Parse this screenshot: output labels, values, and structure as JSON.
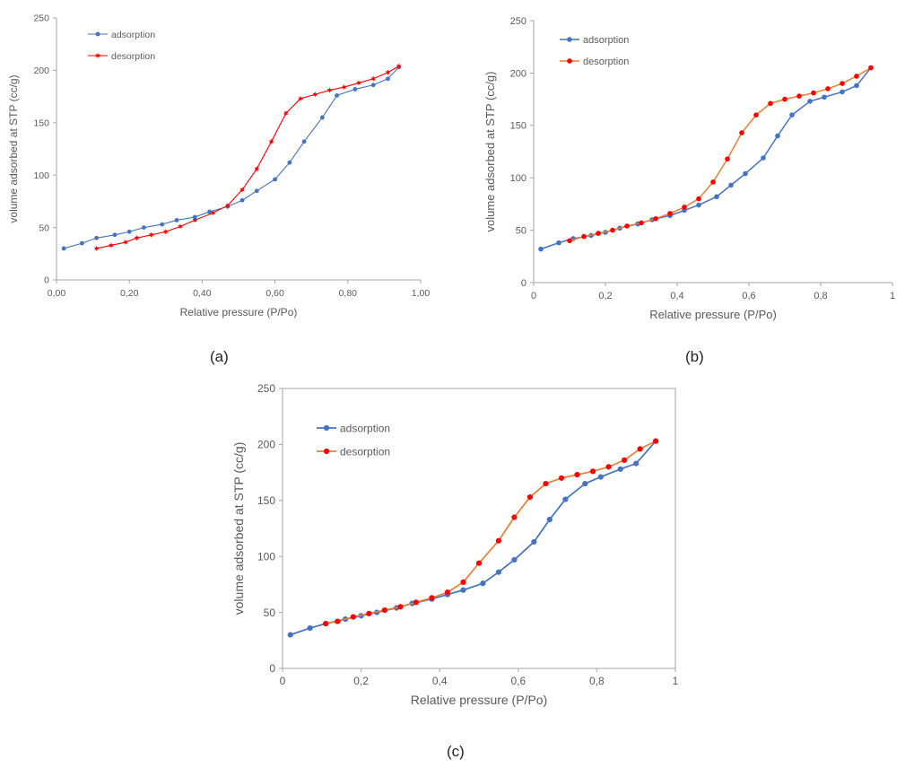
{
  "chart_data": [
    {
      "type": "line",
      "panel_label": "(a)",
      "xlabel": "Relative pressure (P/Po)",
      "ylabel": "volume adsorbed at STP (cc/g)",
      "xlim": [
        0,
        1
      ],
      "ylim": [
        0,
        250
      ],
      "xticks": [
        0,
        0.2,
        0.4,
        0.6,
        0.8,
        1.0
      ],
      "xtick_labels": [
        "0,00",
        "0,20",
        "0,40",
        "0,60",
        "0,80",
        "1,00"
      ],
      "yticks": [
        0,
        50,
        100,
        150,
        200,
        250
      ],
      "ytick_labels": [
        "0",
        "50",
        "100",
        "150",
        "200",
        "250"
      ],
      "grid": false,
      "legend_position": "top-left",
      "series": [
        {
          "name": "adsorption",
          "color": "#4472c4",
          "marker": "circle",
          "x": [
            0.02,
            0.07,
            0.11,
            0.16,
            0.2,
            0.24,
            0.29,
            0.33,
            0.38,
            0.42,
            0.47,
            0.51,
            0.55,
            0.6,
            0.64,
            0.68,
            0.73,
            0.77,
            0.82,
            0.87,
            0.91,
            0.94
          ],
          "y": [
            30,
            35,
            40,
            43,
            46,
            50,
            53,
            57,
            60,
            65,
            70,
            76,
            85,
            96,
            112,
            132,
            155,
            176,
            182,
            186,
            192,
            203
          ]
        },
        {
          "name": "desorption",
          "color": "#ff0000",
          "marker": "star",
          "x": [
            0.11,
            0.15,
            0.19,
            0.22,
            0.26,
            0.3,
            0.34,
            0.38,
            0.43,
            0.47,
            0.51,
            0.55,
            0.59,
            0.63,
            0.67,
            0.71,
            0.75,
            0.79,
            0.83,
            0.87,
            0.91,
            0.94
          ],
          "y": [
            30,
            33,
            36,
            40,
            43,
            46,
            51,
            57,
            64,
            71,
            86,
            106,
            132,
            159,
            173,
            177,
            181,
            184,
            188,
            192,
            198,
            204
          ]
        }
      ]
    },
    {
      "type": "line",
      "panel_label": "(b)",
      "xlabel": "Relative pressure (P/Po)",
      "ylabel": "volume adsorbed at STP (cc/g)",
      "xlim": [
        0,
        1
      ],
      "ylim": [
        0,
        250
      ],
      "xticks": [
        0,
        0.2,
        0.4,
        0.6,
        0.8,
        1
      ],
      "xtick_labels": [
        "0",
        "0,2",
        "0,4",
        "0,6",
        "0,8",
        "1"
      ],
      "yticks": [
        0,
        50,
        100,
        150,
        200,
        250
      ],
      "ytick_labels": [
        "0",
        "50",
        "100",
        "150",
        "200",
        "250"
      ],
      "grid": false,
      "legend_position": "top-left",
      "series": [
        {
          "name": "adsorption",
          "color": "#4472c4",
          "marker": "circle",
          "x": [
            0.02,
            0.07,
            0.11,
            0.16,
            0.2,
            0.24,
            0.29,
            0.33,
            0.38,
            0.42,
            0.46,
            0.51,
            0.55,
            0.59,
            0.64,
            0.68,
            0.72,
            0.77,
            0.81,
            0.86,
            0.9,
            0.94
          ],
          "y": [
            32,
            38,
            42,
            45,
            48,
            52,
            56,
            60,
            64,
            69,
            74,
            82,
            93,
            104,
            119,
            140,
            160,
            173,
            177,
            182,
            188,
            205
          ]
        },
        {
          "name": "desorption",
          "color": "#ed7d31",
          "marker": "circle",
          "x": [
            0.1,
            0.14,
            0.18,
            0.22,
            0.26,
            0.3,
            0.34,
            0.38,
            0.42,
            0.46,
            0.5,
            0.54,
            0.58,
            0.62,
            0.66,
            0.7,
            0.74,
            0.78,
            0.82,
            0.86,
            0.9,
            0.94
          ],
          "y": [
            40,
            44,
            47,
            50,
            54,
            57,
            61,
            66,
            72,
            80,
            96,
            118,
            143,
            160,
            171,
            175,
            178,
            181,
            185,
            190,
            197,
            205
          ]
        }
      ]
    },
    {
      "type": "line",
      "panel_label": "(c)",
      "xlabel": "Relative pressure (P/Po)",
      "ylabel": "volume adsorbed at STP (cc/g)",
      "xlim": [
        0,
        1
      ],
      "ylim": [
        0,
        250
      ],
      "xticks": [
        0,
        0.2,
        0.4,
        0.6,
        0.8,
        1
      ],
      "xtick_labels": [
        "0",
        "0,2",
        "0,4",
        "0,6",
        "0,8",
        "1"
      ],
      "yticks": [
        0,
        50,
        100,
        150,
        200,
        250
      ],
      "ytick_labels": [
        "0",
        "50",
        "100",
        "150",
        "200",
        "250"
      ],
      "grid": false,
      "legend_position": "top-left",
      "series": [
        {
          "name": "adsorption",
          "color": "#4472c4",
          "marker": "circle",
          "x": [
            0.02,
            0.07,
            0.11,
            0.16,
            0.2,
            0.24,
            0.29,
            0.33,
            0.38,
            0.42,
            0.46,
            0.51,
            0.55,
            0.59,
            0.64,
            0.68,
            0.72,
            0.77,
            0.81,
            0.86,
            0.9,
            0.95
          ],
          "y": [
            30,
            36,
            40,
            44,
            47,
            50,
            54,
            58,
            62,
            66,
            70,
            76,
            86,
            97,
            113,
            133,
            151,
            165,
            171,
            178,
            183,
            203
          ]
        },
        {
          "name": "desorption",
          "color": "#ed7d31",
          "marker": "circle",
          "x": [
            0.11,
            0.14,
            0.18,
            0.22,
            0.26,
            0.3,
            0.34,
            0.38,
            0.42,
            0.46,
            0.5,
            0.55,
            0.59,
            0.63,
            0.67,
            0.71,
            0.75,
            0.79,
            0.83,
            0.87,
            0.91,
            0.95
          ],
          "y": [
            40,
            42,
            46,
            49,
            52,
            55,
            59,
            63,
            68,
            77,
            94,
            114,
            135,
            153,
            165,
            170,
            173,
            176,
            180,
            186,
            196,
            203
          ]
        }
      ]
    }
  ]
}
